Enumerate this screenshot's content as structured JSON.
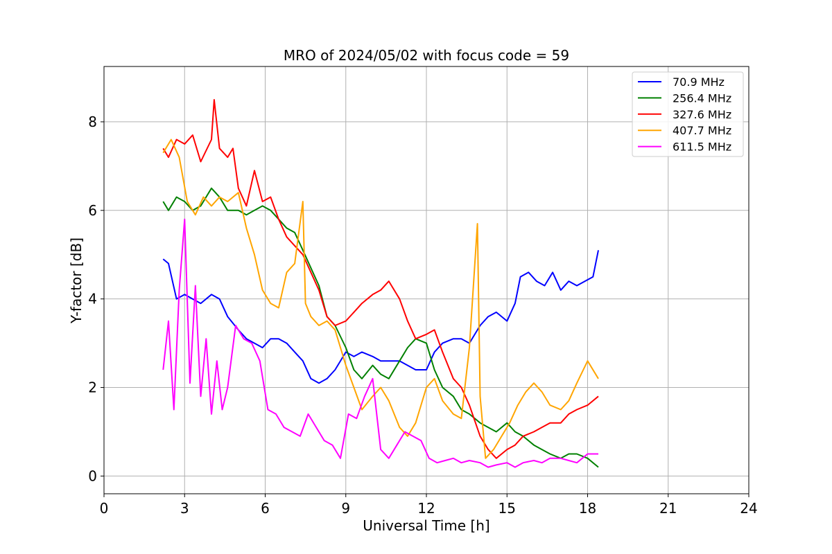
{
  "chart_data": {
    "type": "line",
    "title": "MRO of 2024/05/02 with focus code = 59",
    "xlabel": "Universal Time [h]",
    "ylabel": "Y-factor [dB]",
    "xlim": [
      0,
      24
    ],
    "ylim": [
      -0.4,
      9.25
    ],
    "xticks": [
      0,
      3,
      6,
      9,
      12,
      15,
      18,
      21,
      24
    ],
    "yticks": [
      0,
      2,
      4,
      6,
      8
    ],
    "grid": true,
    "legend_position": "top-right",
    "series": [
      {
        "name": " 70.9 MHz",
        "color": "#0000ff",
        "x": [
          2.2,
          2.4,
          2.7,
          3.0,
          3.3,
          3.6,
          4.0,
          4.3,
          4.6,
          5.0,
          5.3,
          5.6,
          5.9,
          6.2,
          6.5,
          6.8,
          7.1,
          7.4,
          7.7,
          8.0,
          8.3,
          8.6,
          9.0,
          9.3,
          9.6,
          10.0,
          10.3,
          10.6,
          11.0,
          11.3,
          11.6,
          12.0,
          12.3,
          12.6,
          13.0,
          13.3,
          13.6,
          14.0,
          14.3,
          14.6,
          15.0,
          15.3,
          15.5,
          15.8,
          16.1,
          16.4,
          16.7,
          17.0,
          17.3,
          17.6,
          17.9,
          18.2,
          18.4
        ],
        "values": [
          4.9,
          4.8,
          4.0,
          4.1,
          4.0,
          3.9,
          4.1,
          4.0,
          3.6,
          3.3,
          3.1,
          3.0,
          2.9,
          3.1,
          3.1,
          3.0,
          2.8,
          2.6,
          2.2,
          2.1,
          2.2,
          2.4,
          2.8,
          2.7,
          2.8,
          2.7,
          2.6,
          2.6,
          2.6,
          2.5,
          2.4,
          2.4,
          2.8,
          3.0,
          3.1,
          3.1,
          3.0,
          3.4,
          3.6,
          3.7,
          3.5,
          3.9,
          4.5,
          4.6,
          4.4,
          4.3,
          4.6,
          4.2,
          4.4,
          4.3,
          4.4,
          4.5,
          5.1
        ]
      },
      {
        "name": "256.4 MHz",
        "color": "#008000",
        "x": [
          2.2,
          2.4,
          2.7,
          3.0,
          3.3,
          3.6,
          4.0,
          4.3,
          4.6,
          5.0,
          5.3,
          5.6,
          5.9,
          6.2,
          6.5,
          6.8,
          7.1,
          7.4,
          7.7,
          8.0,
          8.3,
          8.6,
          9.0,
          9.3,
          9.6,
          10.0,
          10.3,
          10.6,
          11.0,
          11.3,
          11.6,
          12.0,
          12.3,
          12.6,
          13.0,
          13.3,
          13.6,
          14.0,
          14.3,
          14.6,
          15.0,
          15.3,
          15.6,
          16.0,
          16.3,
          16.6,
          17.0,
          17.3,
          17.6,
          18.0,
          18.4
        ],
        "values": [
          6.2,
          6.0,
          6.3,
          6.2,
          6.0,
          6.1,
          6.5,
          6.3,
          6.0,
          6.0,
          5.9,
          6.0,
          6.1,
          6.0,
          5.8,
          5.6,
          5.5,
          5.1,
          4.7,
          4.3,
          3.6,
          3.4,
          2.9,
          2.4,
          2.2,
          2.5,
          2.3,
          2.2,
          2.6,
          2.9,
          3.1,
          3.0,
          2.4,
          2.0,
          1.8,
          1.5,
          1.4,
          1.2,
          1.1,
          1.0,
          1.2,
          1.0,
          0.9,
          0.7,
          0.6,
          0.5,
          0.4,
          0.5,
          0.5,
          0.4,
          0.2
        ]
      },
      {
        "name": "327.6 MHz",
        "color": "#ff0000",
        "x": [
          2.2,
          2.4,
          2.7,
          3.0,
          3.3,
          3.6,
          4.0,
          4.1,
          4.3,
          4.6,
          4.8,
          5.0,
          5.3,
          5.6,
          5.9,
          6.2,
          6.5,
          6.8,
          7.1,
          7.4,
          7.7,
          8.0,
          8.3,
          8.6,
          9.0,
          9.3,
          9.6,
          10.0,
          10.3,
          10.6,
          11.0,
          11.3,
          11.6,
          12.0,
          12.3,
          12.6,
          13.0,
          13.3,
          13.6,
          14.0,
          14.3,
          14.6,
          15.0,
          15.3,
          15.6,
          16.0,
          16.3,
          16.6,
          17.0,
          17.3,
          17.6,
          18.0,
          18.4
        ],
        "values": [
          7.4,
          7.2,
          7.6,
          7.5,
          7.7,
          7.1,
          7.6,
          8.5,
          7.4,
          7.2,
          7.4,
          6.5,
          6.1,
          6.9,
          6.2,
          6.3,
          5.8,
          5.4,
          5.2,
          5.0,
          4.6,
          4.2,
          3.6,
          3.4,
          3.5,
          3.7,
          3.9,
          4.1,
          4.2,
          4.4,
          4.0,
          3.5,
          3.1,
          3.2,
          3.3,
          2.8,
          2.2,
          2.0,
          1.6,
          0.9,
          0.6,
          0.4,
          0.6,
          0.7,
          0.9,
          1.0,
          1.1,
          1.2,
          1.2,
          1.4,
          1.5,
          1.6,
          1.8
        ]
      },
      {
        "name": "407.7 MHz",
        "color": "#ffa500",
        "x": [
          2.2,
          2.5,
          2.8,
          3.1,
          3.4,
          3.7,
          4.0,
          4.3,
          4.6,
          5.0,
          5.3,
          5.6,
          5.9,
          6.2,
          6.5,
          6.8,
          7.1,
          7.4,
          7.5,
          7.7,
          8.0,
          8.3,
          8.6,
          9.0,
          9.3,
          9.6,
          10.0,
          10.3,
          10.6,
          11.0,
          11.3,
          11.6,
          12.0,
          12.3,
          12.6,
          13.0,
          13.3,
          13.6,
          13.9,
          14.0,
          14.2,
          14.5,
          14.8,
          15.1,
          15.4,
          15.7,
          16.0,
          16.3,
          16.6,
          17.0,
          17.3,
          17.6,
          18.0,
          18.4
        ],
        "values": [
          7.3,
          7.6,
          7.2,
          6.2,
          5.9,
          6.3,
          6.1,
          6.3,
          6.2,
          6.4,
          5.6,
          5.0,
          4.2,
          3.9,
          3.8,
          4.6,
          4.8,
          6.2,
          3.9,
          3.6,
          3.4,
          3.5,
          3.3,
          2.5,
          2.0,
          1.5,
          1.8,
          2.0,
          1.7,
          1.1,
          0.9,
          1.2,
          2.0,
          2.2,
          1.7,
          1.4,
          1.3,
          2.9,
          5.7,
          1.8,
          0.4,
          0.6,
          0.9,
          1.2,
          1.6,
          1.9,
          2.1,
          1.9,
          1.6,
          1.5,
          1.7,
          2.1,
          2.6,
          2.2
        ]
      },
      {
        "name": "611.5 MHz",
        "color": "#ff00ff",
        "x": [
          2.2,
          2.4,
          2.6,
          2.8,
          3.0,
          3.2,
          3.4,
          3.6,
          3.8,
          4.0,
          4.2,
          4.4,
          4.6,
          4.9,
          5.2,
          5.5,
          5.8,
          6.1,
          6.4,
          6.7,
          7.0,
          7.3,
          7.6,
          7.9,
          8.2,
          8.5,
          8.8,
          9.1,
          9.4,
          9.7,
          10.0,
          10.3,
          10.6,
          10.9,
          11.2,
          11.5,
          11.8,
          12.1,
          12.4,
          12.7,
          13.0,
          13.3,
          13.6,
          14.0,
          14.3,
          14.6,
          15.0,
          15.3,
          15.6,
          16.0,
          16.3,
          16.6,
          17.0,
          17.3,
          17.6,
          18.0,
          18.4
        ],
        "values": [
          2.4,
          3.5,
          1.5,
          4.2,
          5.8,
          2.1,
          4.3,
          1.8,
          3.1,
          1.4,
          2.6,
          1.5,
          2.0,
          3.4,
          3.1,
          3.0,
          2.6,
          1.5,
          1.4,
          1.1,
          1.0,
          0.9,
          1.4,
          1.1,
          0.8,
          0.7,
          0.4,
          1.4,
          1.3,
          1.8,
          2.2,
          0.6,
          0.4,
          0.7,
          1.0,
          0.9,
          0.8,
          0.4,
          0.3,
          0.35,
          0.4,
          0.3,
          0.35,
          0.3,
          0.2,
          0.25,
          0.3,
          0.2,
          0.3,
          0.35,
          0.3,
          0.4,
          0.4,
          0.35,
          0.3,
          0.5,
          0.5
        ]
      }
    ]
  }
}
